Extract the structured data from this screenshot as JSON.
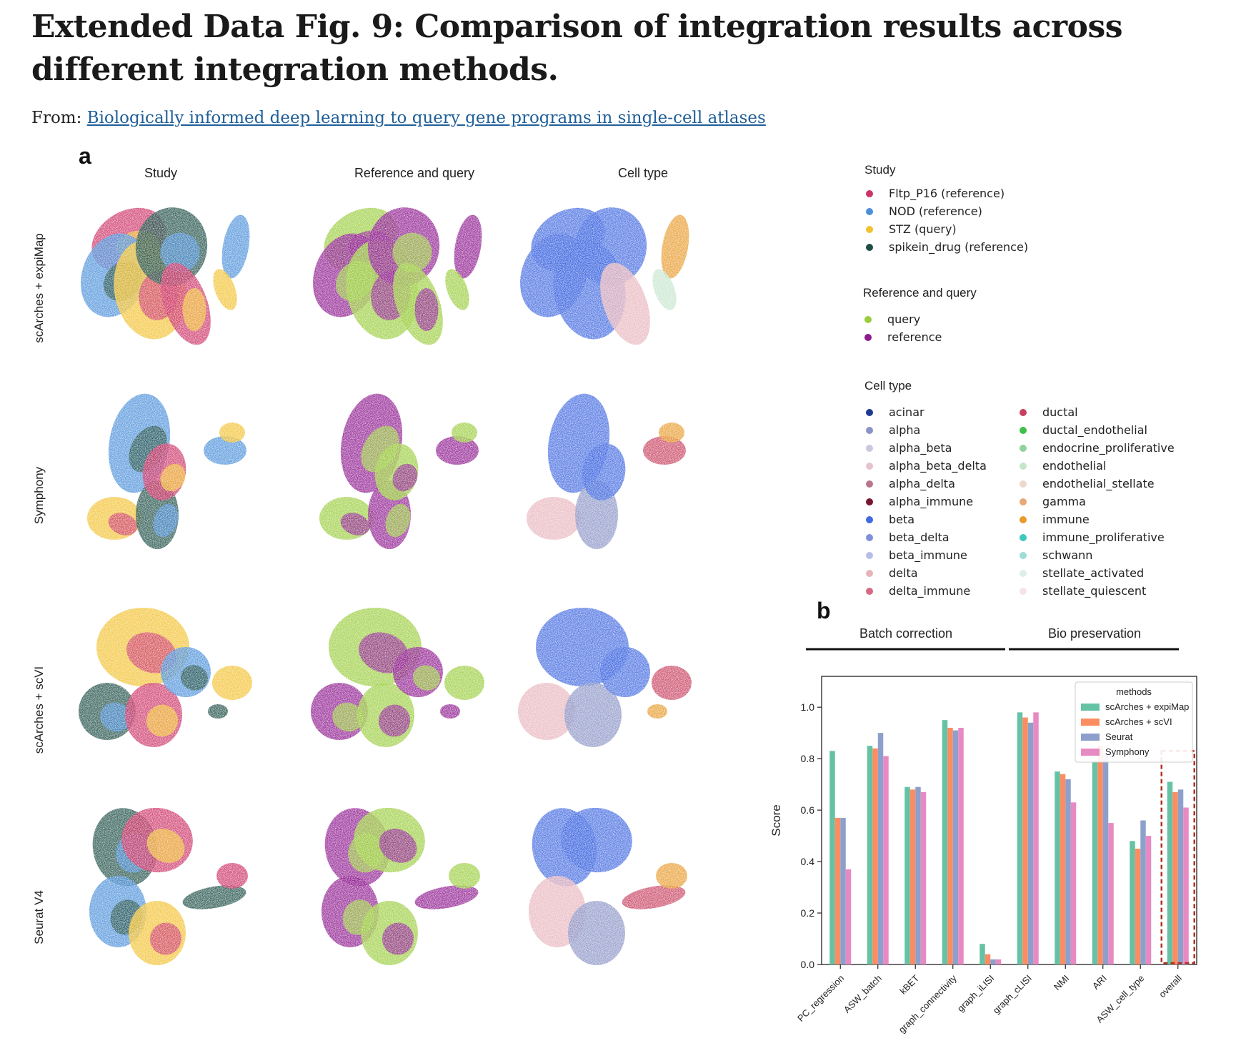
{
  "page": {
    "title": "Extended Data Fig. 9: Comparison of integration results across different integration methods.",
    "from_label": "From:",
    "from_link": "Biologically informed deep learning to query gene programs in single-cell atlases"
  },
  "panel_a": {
    "letter": "a",
    "columns": [
      "Study",
      "Reference and query",
      "Cell type"
    ],
    "rows": [
      "scArches + expiMap",
      "Symphony",
      "scArches + scVI",
      "Seurat V4"
    ]
  },
  "legends": {
    "study": {
      "title": "Study",
      "items": [
        {
          "label": "Fltp_P16 (reference)",
          "color": "#cc3366"
        },
        {
          "label": "NOD (reference)",
          "color": "#4a8fd9"
        },
        {
          "label": "STZ (query)",
          "color": "#f2c12e"
        },
        {
          "label": "spikein_drug (reference)",
          "color": "#1d4d45"
        }
      ]
    },
    "refquery": {
      "title": "Reference and query",
      "items": [
        {
          "label": "query",
          "color": "#9acd3c"
        },
        {
          "label": "reference",
          "color": "#8e1a8e"
        }
      ]
    },
    "celltype": {
      "title": "Cell type",
      "items_left": [
        {
          "label": "acinar",
          "color": "#1f3a93"
        },
        {
          "label": "alpha",
          "color": "#8a93c6"
        },
        {
          "label": "alpha_beta",
          "color": "#c9c9de"
        },
        {
          "label": "alpha_beta_delta",
          "color": "#e6c3cc"
        },
        {
          "label": "alpha_delta",
          "color": "#b8768c"
        },
        {
          "label": "alpha_immune",
          "color": "#7a1530"
        },
        {
          "label": "beta",
          "color": "#4169e1"
        },
        {
          "label": "beta_delta",
          "color": "#7f8fdc"
        },
        {
          "label": "beta_immune",
          "color": "#b7bde8"
        },
        {
          "label": "delta",
          "color": "#e8b4bc"
        },
        {
          "label": "delta_immune",
          "color": "#d66a84"
        }
      ],
      "items_right": [
        {
          "label": "ductal",
          "color": "#c8405e"
        },
        {
          "label": "ductal_endothelial",
          "color": "#3fbf4a"
        },
        {
          "label": "endocrine_proliferative",
          "color": "#8fd39a"
        },
        {
          "label": "endothelial",
          "color": "#c5e5cb"
        },
        {
          "label": "endothelial_stellate",
          "color": "#ecd9cc"
        },
        {
          "label": "gamma",
          "color": "#e8a877"
        },
        {
          "label": "immune",
          "color": "#e89a2a"
        },
        {
          "label": "immune_proliferative",
          "color": "#3fc7c0"
        },
        {
          "label": "schwann",
          "color": "#9fdcd6"
        },
        {
          "label": "stellate_activated",
          "color": "#dcefe8"
        },
        {
          "label": "stellate_quiescent",
          "color": "#f6e2ea"
        }
      ]
    }
  },
  "panel_b": {
    "letter": "b",
    "group_labels": [
      "Batch correction",
      "Bio preservation"
    ]
  },
  "chart_data": {
    "type": "bar",
    "categories": [
      "PC_regression",
      "ASW_batch",
      "kBET",
      "graph_connectivity",
      "graph_iLISI",
      "graph_cLISI",
      "NMI",
      "ARI",
      "ASW_cell_type",
      "overall"
    ],
    "series": [
      {
        "name": "scArches + expiMap",
        "color": "#66c2a5",
        "values": [
          0.83,
          0.85,
          0.69,
          0.95,
          0.08,
          0.98,
          0.75,
          0.79,
          0.48,
          0.71
        ]
      },
      {
        "name": "scArches + scVI",
        "color": "#fc8d62",
        "values": [
          0.57,
          0.84,
          0.68,
          0.92,
          0.04,
          0.96,
          0.74,
          0.85,
          0.45,
          0.67
        ]
      },
      {
        "name": "Seurat",
        "color": "#8da0cb",
        "values": [
          0.57,
          0.9,
          0.69,
          0.91,
          0.02,
          0.94,
          0.72,
          0.82,
          0.56,
          0.68
        ]
      },
      {
        "name": "Symphony",
        "color": "#e78ac3",
        "values": [
          0.37,
          0.81,
          0.67,
          0.92,
          0.02,
          0.98,
          0.63,
          0.55,
          0.5,
          0.61
        ]
      }
    ],
    "ylabel": "Score",
    "ylim": [
      0,
      1.12
    ],
    "yticks": [
      0.0,
      0.2,
      0.4,
      0.6,
      0.8,
      1.0
    ],
    "ytick_labels": [
      "0.0",
      "0.2",
      "0.4",
      "0.6",
      "0.8",
      "1.0"
    ],
    "legend_title": "methods",
    "legend_position": "top-right",
    "grid": false,
    "highlight_category": "overall",
    "highlight_color": "#b03020"
  }
}
